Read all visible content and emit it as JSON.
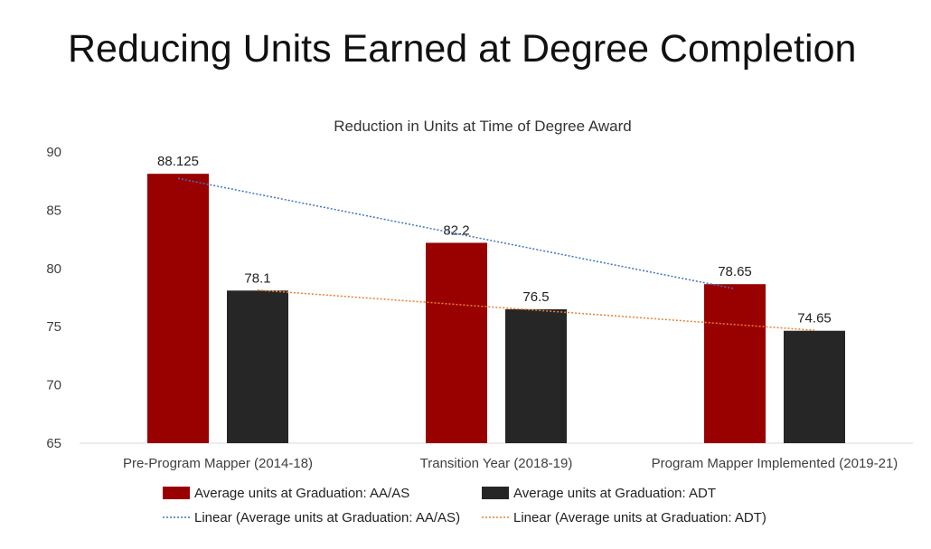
{
  "slide": {
    "title": "Reducing Units Earned at Degree Completion"
  },
  "chart_data": {
    "type": "bar",
    "title": "Reduction in Units at Time of Degree Award",
    "xlabel": "",
    "ylabel": "",
    "ylim": [
      65,
      90
    ],
    "yticks": [
      "65",
      "70",
      "75",
      "80",
      "85",
      "90"
    ],
    "grid": false,
    "legend_position": "bottom",
    "categories": [
      "Pre-Program Mapper (2014-18)",
      "Transition Year (2018-19)",
      "Program Mapper Implemented (2019-21)"
    ],
    "series": [
      {
        "name": "Average units at Graduation: AA/AS",
        "values": [
          88.125,
          82.2,
          78.65
        ],
        "labels": [
          "88.125",
          "82.2",
          "78.65"
        ],
        "color": "#990000"
      },
      {
        "name": "Average units at Graduation: ADT",
        "values": [
          78.1,
          76.5,
          74.65
        ],
        "labels": [
          "78.1",
          "76.5",
          "74.65"
        ],
        "color": "#262626"
      }
    ],
    "trendlines": [
      {
        "name": "Linear (Average units at Graduation: AA/AS)",
        "type": "linear",
        "color": "#4472c4",
        "style": "dotted"
      },
      {
        "name": "Linear (Average units at Graduation: ADT)",
        "type": "linear",
        "color": "#ed7d31",
        "style": "dotted"
      }
    ]
  }
}
